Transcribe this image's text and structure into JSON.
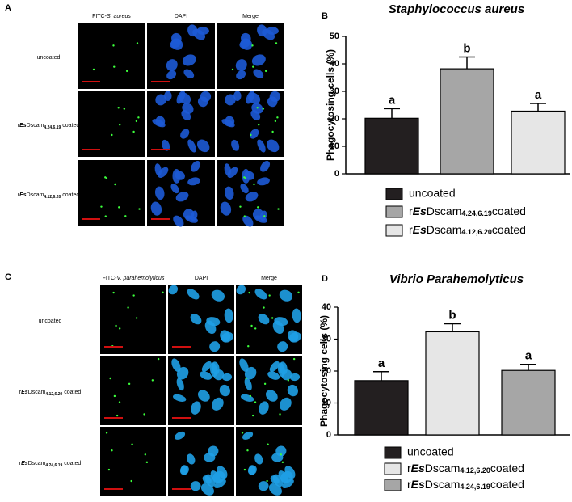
{
  "panels": [
    {
      "label": "A",
      "columns": [
        "FITC-S. aureus",
        "DAPI",
        "Merge"
      ],
      "rows": [
        "uncoated",
        "rEsDscam4.24,6.19 coated",
        "rEsDscam4.12,6.20 coated"
      ]
    },
    {
      "label": "C",
      "columns": [
        "FITC-V. parahemolyticus",
        "DAPI",
        "Merge"
      ],
      "rows": [
        "uncoated",
        "rEsDscam4.12,6.20 coated",
        "rEsDscam4.24,6.19 coated"
      ]
    }
  ],
  "chart_data": [
    {
      "type": "bar",
      "label": "B",
      "title": "Staphylococcus aureus",
      "y_label": "Phagocytosing cells (%)",
      "categories": [
        "uncoated",
        "rEsDscam4.24,6.19coated",
        "rEsDscam4.12,6.20coated"
      ],
      "values": [
        20.2,
        38.2,
        22.8
      ],
      "errors": [
        3.5,
        4.3,
        2.8
      ],
      "annotations": [
        "a",
        "b",
        "a"
      ],
      "colors": [
        "#231f20",
        "#a6a6a6",
        "#e6e6e6"
      ],
      "ylim": [
        0,
        50
      ],
      "yticks": [
        0,
        10,
        20,
        30,
        40,
        50
      ]
    },
    {
      "type": "bar",
      "label": "D",
      "title": "Vibrio Parahemolyticus",
      "y_label": "Phagocytosing cells (%)",
      "categories": [
        "uncoated",
        "rEsDscam4.12,6.20coated",
        "rEsDscam4.24,6.19coated"
      ],
      "values": [
        17.0,
        32.3,
        20.2
      ],
      "errors": [
        2.8,
        2.5,
        1.9
      ],
      "annotations": [
        "a",
        "b",
        "a"
      ],
      "colors": [
        "#231f20",
        "#e6e6e6",
        "#a6a6a6"
      ],
      "ylim": [
        0,
        40
      ],
      "yticks": [
        0,
        10,
        20,
        30,
        40
      ]
    }
  ]
}
